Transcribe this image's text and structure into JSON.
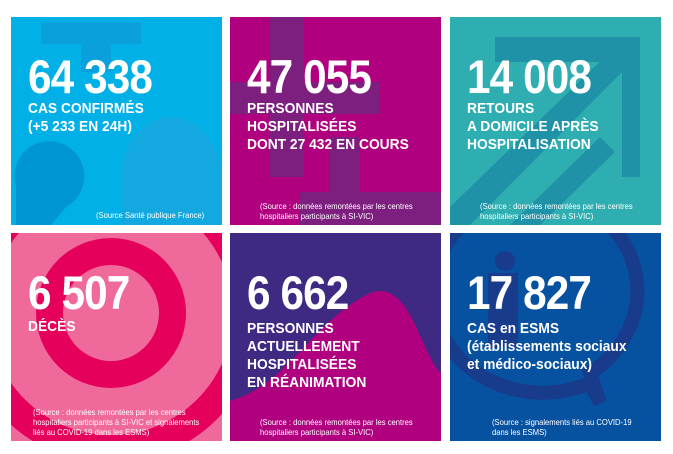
{
  "colors": {
    "blue": "#00b0e6",
    "magenta": "#b0007f",
    "teal": "#2eaeb1",
    "pink": "#ef6a9a",
    "purple": "#3e2a83",
    "dark_blue": "#0752a0"
  },
  "tiles": [
    {
      "number": "64 338",
      "label": "CAS CONFIRMÉS\n(+5 233 EN 24H)",
      "source": "(Source Santé publique France)",
      "icon": "numbers-background"
    },
    {
      "number": "47 055",
      "label": "PERSONNES\nHOSPITALISÉES\nDONT 27 432 EN COURS",
      "source": "(Source : données remontées par les centres\nhospitaliers participants à SI-VIC)",
      "icon": "cross-background"
    },
    {
      "number": "14 008",
      "label": "RETOURS\nA DOMICILE APRÈS\nHOSPITALISATION",
      "source": "(Source : données remontées par les centres\nhospitaliers participants à SI-VIC)",
      "icon": "arrow-background"
    },
    {
      "number": "6 507",
      "label": "DÉCÈS",
      "source": "(Source : données remontées par les centres\nhospitaliers participants à SI-VIC et signalements\nliés au COVID-19 dans les ESMS)",
      "icon": "target-background"
    },
    {
      "number": "6 662",
      "label": "PERSONNES\nACTUELLEMENT\nHOSPITALISÉES\nEN RÉANIMATION",
      "source": "(Source : données remontées par les centres\nhospitaliers participants à SI-VIC)",
      "icon": "wave-background"
    },
    {
      "number": "17 827",
      "label": "CAS en ESMS\n(établissements sociaux\net médico-sociaux)",
      "source": "(Source : signalements liés au COVID-19\ndans les ESMS)",
      "icon": "info-bubble-background"
    }
  ]
}
